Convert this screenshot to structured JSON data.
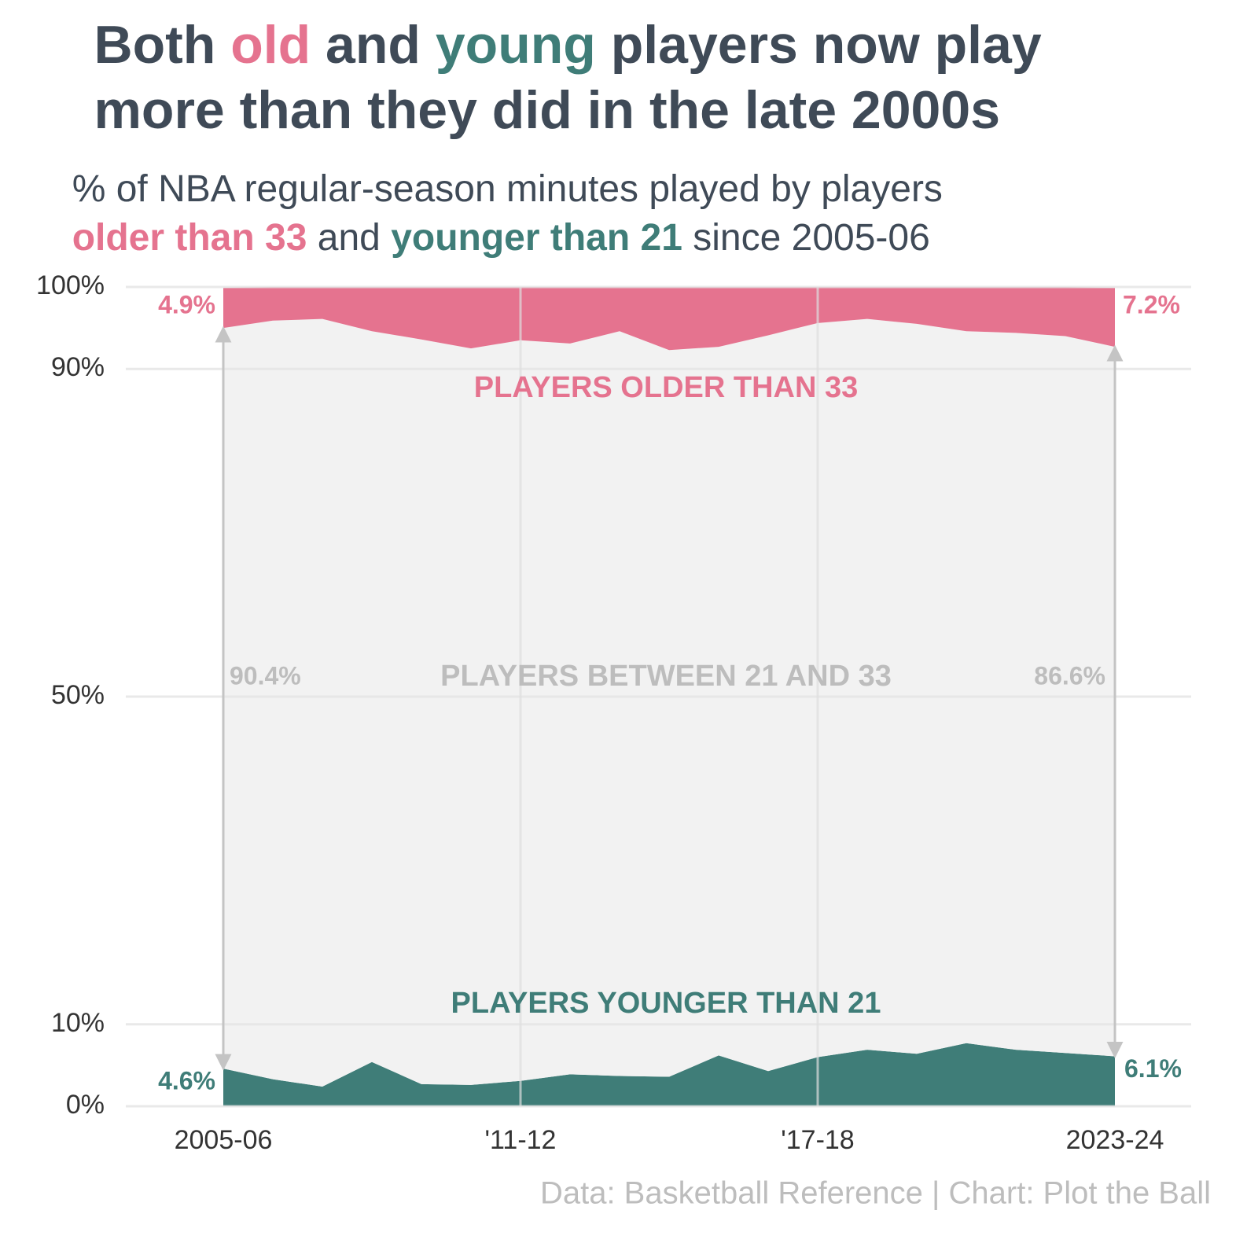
{
  "title": [
    [
      "Both ",
      "old",
      " and ",
      "young",
      " players now play"
    ],
    [
      "more than they did in the late 2000s"
    ]
  ],
  "subtitle": [
    [
      "% of NBA regular-season minutes played by players"
    ],
    [
      "older than 33",
      " and ",
      "younger than 21",
      " since 2005-06"
    ]
  ],
  "source": "Data: Basketball Reference | Chart: Plot the Ball",
  "chart_data": {
    "type": "area",
    "stacked": true,
    "categories": [
      "2005-06",
      null,
      null,
      null,
      null,
      null,
      "'11-12",
      null,
      null,
      null,
      null,
      null,
      "'17-18",
      null,
      null,
      null,
      null,
      null,
      "2023-24"
    ],
    "series": [
      {
        "name": "PLAYERS YOUNGER THAN 21",
        "color": "#3f7d78",
        "values": [
          4.6,
          3.3,
          2.4,
          5.4,
          2.7,
          2.6,
          3.1,
          3.9,
          3.7,
          3.6,
          6.2,
          4.3,
          6.0,
          6.9,
          6.4,
          7.7,
          6.9,
          6.5,
          6.1
        ],
        "value_labels": [
          "4.6%",
          null,
          null,
          null,
          null,
          null,
          null,
          null,
          null,
          null,
          null,
          null,
          null,
          null,
          null,
          null,
          null,
          null,
          "6.1%"
        ]
      },
      {
        "name": "PLAYERS BETWEEN 21 AND 33",
        "color": "#f2f2f2",
        "values": [
          90.4,
          92.6,
          93.7,
          89.2,
          90.9,
          89.9,
          90.4,
          89.2,
          90.9,
          88.7,
          86.5,
          89.8,
          89.6,
          89.2,
          89.1,
          86.9,
          87.5,
          87.5,
          86.6
        ],
        "value_labels": [
          "90.4%",
          null,
          null,
          null,
          null,
          null,
          null,
          null,
          null,
          null,
          null,
          null,
          null,
          null,
          null,
          null,
          null,
          null,
          "86.6%"
        ]
      },
      {
        "name": "PLAYERS OLDER THAN 33",
        "color": "#e5738f",
        "values": [
          4.9,
          4.1,
          3.9,
          5.4,
          6.4,
          7.5,
          6.5,
          6.9,
          5.4,
          7.7,
          7.3,
          5.9,
          4.4,
          3.9,
          4.5,
          5.4,
          5.6,
          6.0,
          7.2
        ],
        "value_labels": [
          "4.9%",
          null,
          null,
          null,
          null,
          null,
          null,
          null,
          null,
          null,
          null,
          null,
          null,
          null,
          null,
          null,
          null,
          null,
          "7.2%"
        ]
      }
    ],
    "ylim": [
      0,
      100
    ],
    "yticks": [
      {
        "value": 0,
        "label": "0%"
      },
      {
        "value": 10,
        "label": "10%"
      },
      {
        "value": 50,
        "label": "50%"
      },
      {
        "value": 90,
        "label": "90%"
      },
      {
        "value": 100,
        "label": "100%"
      }
    ],
    "grid": true
  }
}
